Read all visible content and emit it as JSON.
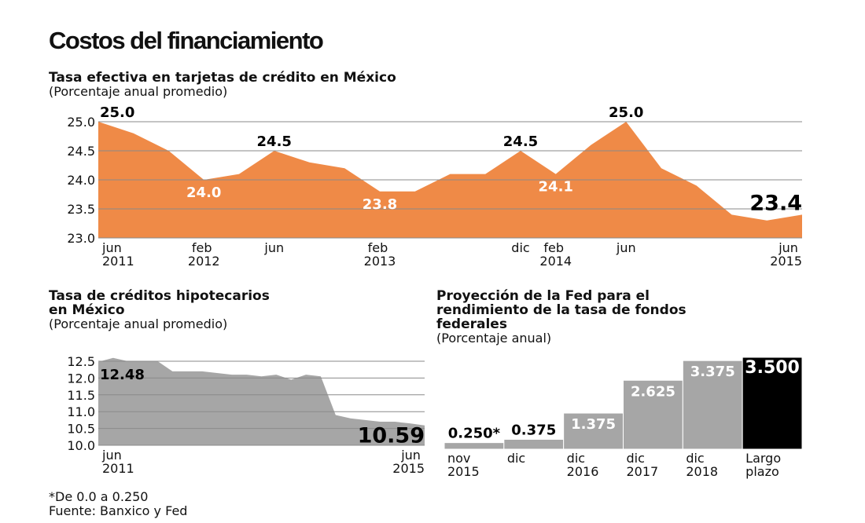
{
  "title": "Costos del financiamiento",
  "notes": [
    "*De 0.0 a 0.250",
    "Fuente: Banxico y Fed"
  ],
  "chart_data": [
    {
      "type": "area",
      "title": [
        "Tasa efectiva en tarjetas de crédito en México"
      ],
      "subtitle": "(Porcentaje anual promedio)",
      "color": "#ef8a47",
      "categories": [
        "jun 2011",
        null,
        null,
        "feb 2012",
        null,
        "jun",
        null,
        null,
        "feb 2013",
        null,
        null,
        null,
        "dic",
        "feb 2014",
        null,
        "jun",
        null,
        null,
        null,
        null,
        "jun 2015"
      ],
      "values": [
        25.0,
        24.8,
        24.5,
        24.0,
        24.1,
        24.5,
        24.3,
        24.2,
        23.8,
        23.8,
        24.1,
        24.1,
        24.5,
        24.1,
        24.6,
        25.0,
        24.2,
        23.9,
        23.4,
        23.3,
        23.4
      ],
      "value_labels": [
        "25.0",
        null,
        null,
        "24.0",
        null,
        "24.5",
        null,
        null,
        "23.8",
        null,
        null,
        null,
        "24.5",
        "24.1",
        null,
        "25.0",
        null,
        null,
        null,
        null,
        "23.4"
      ],
      "ylim": [
        23,
        25
      ],
      "yticks": [
        {
          "value": 23,
          "label": "23.0"
        },
        23.5,
        {
          "value": 24,
          "label": "24.0"
        },
        24.5,
        {
          "value": 25,
          "label": "25.0"
        }
      ],
      "grid": true
    },
    {
      "type": "area",
      "title": [
        "Tasa de créditos hipotecarios",
        "en México"
      ],
      "subtitle": "(Porcentaje anual promedio)",
      "color": "#a6a6a6",
      "categories": [
        "jun 2011",
        null,
        null,
        null,
        null,
        null,
        null,
        null,
        null,
        null,
        null,
        null,
        null,
        null,
        null,
        null,
        null,
        null,
        null,
        null,
        null,
        null,
        "jun 2015"
      ],
      "values": [
        12.48,
        12.6,
        12.5,
        12.5,
        12.5,
        12.2,
        12.2,
        12.2,
        12.15,
        12.1,
        12.1,
        12.05,
        12.1,
        11.95,
        12.1,
        12.05,
        10.9,
        10.8,
        10.75,
        10.7,
        10.7,
        10.65,
        10.59
      ],
      "value_labels": [
        "12.48",
        null,
        null,
        null,
        null,
        null,
        null,
        null,
        null,
        null,
        null,
        null,
        null,
        null,
        null,
        null,
        null,
        null,
        null,
        null,
        null,
        null,
        "10.59"
      ],
      "ylim": [
        10,
        12.5
      ],
      "yticks": [
        {
          "value": 10,
          "label": "10.0"
        },
        10.5,
        {
          "value": 11,
          "label": "11.0"
        },
        11.5,
        {
          "value": 12,
          "label": "12.0"
        },
        12.5
      ],
      "grid": true
    },
    {
      "type": "bar",
      "title": [
        "Proyección de la Fed para el",
        "rendimiento de la tasa de fondos",
        "federales"
      ],
      "subtitle": "(Porcentaje anual)",
      "categories": [
        "nov 2015",
        "dic",
        "dic 2016",
        "dic 2017",
        "dic 2018",
        "Largo plazo"
      ],
      "values": [
        0.25,
        0.375,
        1.375,
        2.625,
        3.375,
        3.5
      ],
      "value_labels": [
        "0.250*",
        "0.375",
        "1.375",
        "2.625",
        "3.375",
        "3.500"
      ],
      "colors": [
        "#a6a6a6",
        "#a6a6a6",
        "#a6a6a6",
        "#a6a6a6",
        "#a6a6a6",
        "#000000"
      ]
    }
  ]
}
